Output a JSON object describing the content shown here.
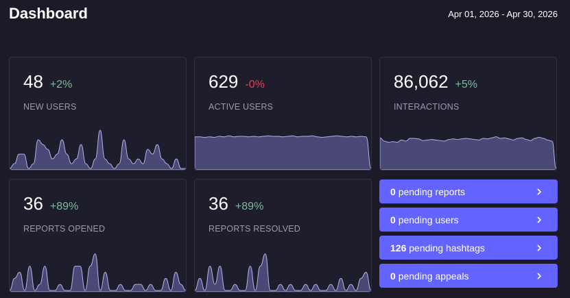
{
  "header": {
    "title": "Dashboard",
    "date_range": "Apr 01, 2026 - Apr 30, 2026"
  },
  "metrics": [
    {
      "value": "48",
      "change": "+2%",
      "trend": "positive",
      "label": "NEW USERS",
      "series": [
        0,
        1,
        3,
        3,
        0,
        1,
        6,
        5,
        4,
        2,
        3,
        6,
        3,
        1,
        2,
        5,
        1,
        0,
        2,
        8,
        2,
        1,
        0,
        1,
        6,
        2,
        1,
        2,
        1,
        4,
        3,
        5,
        2,
        1,
        0,
        2,
        0,
        0
      ]
    },
    {
      "value": "629",
      "change": "-0%",
      "trend": "negative",
      "label": "ACTIVE USERS",
      "series": [
        62,
        62,
        61,
        62,
        61,
        63,
        62,
        64,
        62,
        63,
        63,
        62,
        63,
        62,
        63,
        64,
        63,
        63,
        62,
        63,
        64,
        62,
        63,
        63,
        64,
        62,
        61,
        62,
        63,
        64,
        63,
        62,
        63,
        62,
        63,
        62,
        0
      ]
    },
    {
      "value": "86,062",
      "change": "+5%",
      "trend": "positive",
      "label": "INTERACTIONS",
      "series": [
        56,
        50,
        48,
        49,
        48,
        52,
        50,
        55,
        55,
        54,
        51,
        52,
        53,
        52,
        51,
        50,
        53,
        54,
        53,
        54,
        55,
        54,
        53,
        52,
        55,
        54,
        56,
        58,
        55,
        56,
        54,
        52,
        55,
        56,
        53,
        51,
        55,
        57,
        55,
        52,
        50,
        0
      ]
    },
    {
      "value": "36",
      "change": "+89%",
      "trend": "positive",
      "label": "REPORTS OPENED",
      "series": [
        0,
        2,
        3,
        0,
        4,
        0,
        1,
        4,
        0,
        0,
        1,
        0,
        0,
        4,
        4,
        0,
        4,
        6,
        0,
        3,
        0,
        0,
        1,
        0,
        0,
        1,
        1,
        0,
        1,
        0,
        0,
        2,
        0,
        3,
        1,
        0
      ]
    },
    {
      "value": "36",
      "change": "+89%",
      "trend": "positive",
      "label": "REPORTS RESOLVED",
      "series": [
        0,
        2,
        0,
        4,
        1,
        4,
        0,
        0,
        1,
        0,
        0,
        4,
        0,
        4,
        6,
        0,
        0,
        1,
        0,
        1,
        0,
        0,
        1,
        0,
        1,
        0,
        0,
        1,
        0,
        2,
        0,
        1,
        0,
        2,
        3,
        0
      ]
    }
  ],
  "actions": [
    {
      "count": "0",
      "text": "pending reports",
      "icon": "chevron-right-icon"
    },
    {
      "count": "0",
      "text": "pending users",
      "icon": "chevron-right-icon"
    },
    {
      "count": "126",
      "text": "pending hashtags",
      "icon": "chevron-right-icon"
    },
    {
      "count": "0",
      "text": "pending appeals",
      "icon": "chevron-right-icon"
    }
  ],
  "colors": {
    "accent": "#6364ff",
    "positive": "#79bd9a",
    "negative": "#df405a",
    "sparkline_fill": "#4a4874",
    "sparkline_stroke": "#b3b1ec"
  }
}
